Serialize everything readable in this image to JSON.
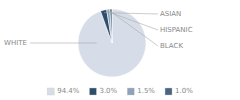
{
  "chart_data": {
    "type": "pie",
    "categories": [
      "WHITE",
      "ASIAN",
      "HISPANIC",
      "BLACK"
    ],
    "values": [
      94.4,
      3.0,
      1.5,
      1.0
    ],
    "value_labels": [
      "94.4%",
      "3.0%",
      "1.5%",
      "1.0%"
    ],
    "colors": [
      "#d6dde8",
      "#2e4d6b",
      "#8fa3b8",
      "#4a6580"
    ],
    "legend": "bottom"
  }
}
